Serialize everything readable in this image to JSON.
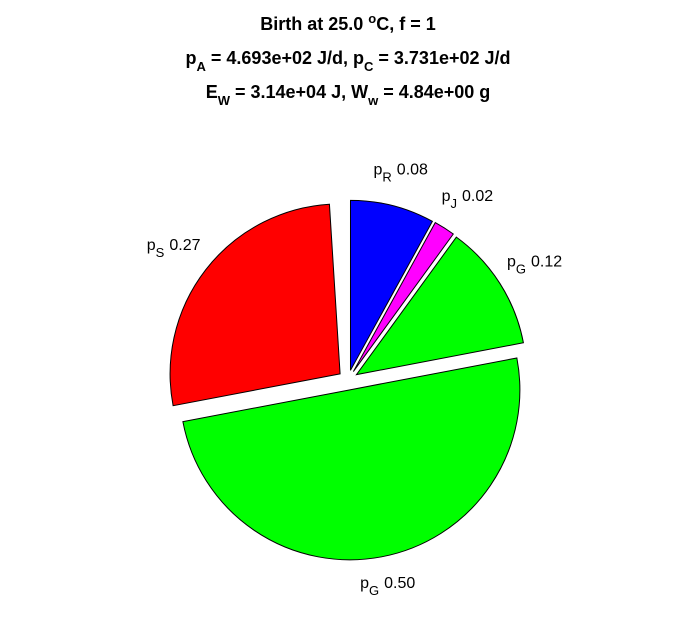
{
  "chart_data": {
    "type": "pie",
    "title": [
      [
        {
          "t": "Birth at 25.0 "
        },
        {
          "sup": "o"
        },
        {
          "t": "C, f = 1"
        }
      ],
      [
        {
          "t": "p"
        },
        {
          "sub": "A"
        },
        {
          "t": " = 4.693e+02 J/d, p"
        },
        {
          "sub": "C"
        },
        {
          "t": " = 3.731e+02 J/d"
        }
      ],
      [
        {
          "t": "E"
        },
        {
          "sub": "W"
        },
        {
          "t": " = 3.14e+04 J, W"
        },
        {
          "sub": "w"
        },
        {
          "t": " = 4.84e+00 g"
        }
      ]
    ],
    "categories": [
      {
        "t": "p",
        "sub": "R"
      },
      {
        "t": "p",
        "sub": "J"
      },
      {
        "t": "p",
        "sub": "G"
      },
      {
        "t": "p",
        "sub": "G"
      },
      {
        "t": "p",
        "sub": "S"
      }
    ],
    "values": [
      0.08,
      0.02,
      0.12,
      0.5,
      0.27
    ],
    "value_labels": [
      "0.08",
      "0.02",
      "0.12",
      "0.50",
      "0.27"
    ],
    "colors": [
      "#0000ff",
      "#ff00ff",
      "#00ff00",
      "#00ff00",
      "#ff0000"
    ]
  }
}
